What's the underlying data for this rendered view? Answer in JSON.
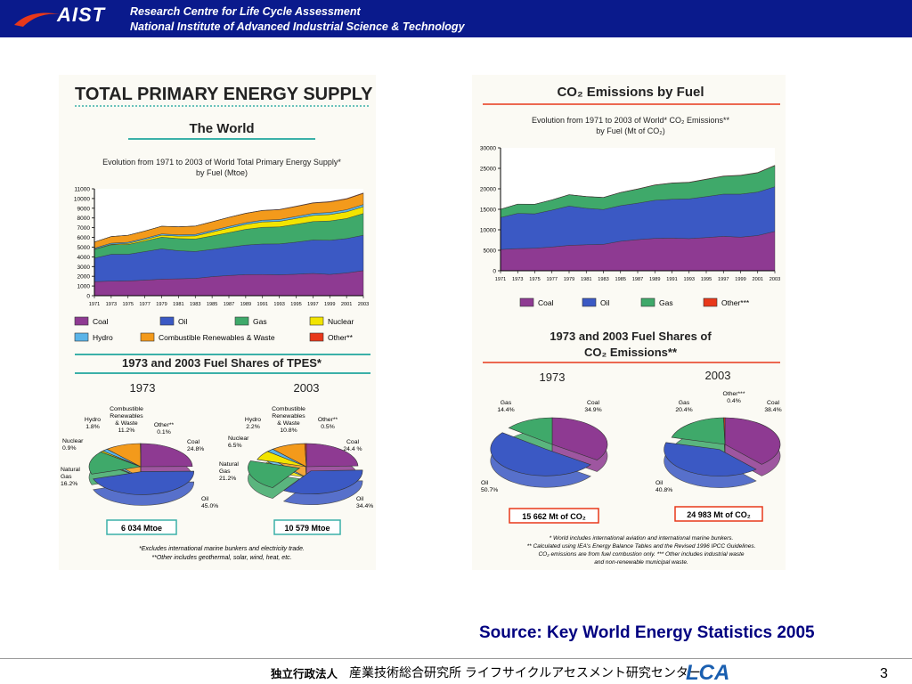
{
  "header": {
    "brand": "AIST",
    "line1": "Research Centre for Life Cycle Assessment",
    "line2": "National Institute of Advanced Industrial Science & Technology"
  },
  "left": {
    "banner": "TOTAL PRIMARY ENERGY SUPPLY",
    "subtitle": "The World",
    "caption1": "Evolution from 1971 to 2003 of World Total Primary Energy Supply*",
    "caption2": "by Fuel (Mtoe)",
    "shares_title": "1973 and 2003 Fuel Shares of TPES*",
    "year1": "1973",
    "year2": "2003",
    "total1": "6 034 Mtoe",
    "total2": "10 579 Mtoe",
    "note1": "*Excludes international marine bunkers and electricity trade.",
    "note2": "**Other includes geothermal, solar, wind, heat, etc.",
    "pie1_labels": [
      {
        "name": "Coal",
        "value": "24.8%"
      },
      {
        "name": "Oil",
        "value": "45.0%"
      },
      {
        "name": "Natural Gas",
        "value": "16.2%"
      },
      {
        "name": "Nuclear",
        "value": "0.9%"
      },
      {
        "name": "Hydro",
        "value": "1.8%"
      },
      {
        "name": "Combustible Renewables & Waste",
        "value": "11.2%"
      },
      {
        "name": "Other**",
        "value": "0.1%"
      }
    ],
    "pie2_labels": [
      {
        "name": "Coal",
        "value": "24.4 %"
      },
      {
        "name": "Oil",
        "value": "34.4%"
      },
      {
        "name": "Natural Gas",
        "value": "21.2%"
      },
      {
        "name": "Nuclear",
        "value": "6.5%"
      },
      {
        "name": "Hydro",
        "value": "2.2%"
      },
      {
        "name": "Combustible Renewables & Waste",
        "value": "10.8%"
      },
      {
        "name": "Other**",
        "value": "0.5%"
      }
    ]
  },
  "right": {
    "banner": "CO₂ Emissions by Fuel",
    "caption1": "Evolution from 1971 to 2003 of World* CO₂ Emissions**",
    "caption2": "by Fuel (Mt of CO₂)",
    "shares_title1": "1973 and 2003 Fuel Shares of",
    "shares_title2": "CO₂ Emissions**",
    "year1": "1973",
    "year2": "2003",
    "total1": "15 662 Mt of CO₂",
    "total2": "24 983 Mt of CO₂",
    "note1": "* World includes international aviation and international marine bunkers.",
    "note2": "** Calculated using IEA's Energy Balance Tables and the Revised 1996 IPCC Guidelines.",
    "note3": "CO₂ emissions are from fuel combustion only. *** Other includes industrial waste",
    "note4": "and non-renewable municipal waste.",
    "pie1_labels": [
      {
        "name": "Coal",
        "value": "34.9%"
      },
      {
        "name": "Oil",
        "value": "50.7%"
      },
      {
        "name": "Gas",
        "value": "14.4%"
      }
    ],
    "pie2_labels": [
      {
        "name": "Coal",
        "value": "38.4%"
      },
      {
        "name": "Oil",
        "value": "40.8%"
      },
      {
        "name": "Gas",
        "value": "20.4%"
      },
      {
        "name": "Other***",
        "value": "0.4%"
      }
    ]
  },
  "chart_data": [
    {
      "type": "area",
      "x_ticks": [
        "1971",
        "1973",
        "1975",
        "1977",
        "1979",
        "1981",
        "1983",
        "1985",
        "1987",
        "1989",
        "1991",
        "1993",
        "1995",
        "1997",
        "1999",
        "2001",
        "2003"
      ],
      "y_ticks": [
        0,
        1000,
        2000,
        3000,
        4000,
        5000,
        6000,
        7000,
        8000,
        9000,
        10000,
        11000
      ],
      "ylim": [
        0,
        11000
      ],
      "x": [
        1971,
        1973,
        1975,
        1977,
        1979,
        1981,
        1983,
        1985,
        1987,
        1989,
        1991,
        1993,
        1995,
        1997,
        1999,
        2001,
        2003
      ],
      "series": [
        {
          "name": "Coal",
          "color": "#8e3a92",
          "values": [
            1450,
            1500,
            1520,
            1600,
            1700,
            1740,
            1780,
            1960,
            2080,
            2170,
            2180,
            2150,
            2210,
            2290,
            2190,
            2340,
            2580
          ]
        },
        {
          "name": "Oil",
          "color": "#3b59c4",
          "values": [
            2420,
            2760,
            2740,
            2940,
            3120,
            2890,
            2770,
            2800,
            2910,
            3040,
            3140,
            3180,
            3300,
            3440,
            3510,
            3540,
            3640
          ]
        },
        {
          "name": "Gas",
          "color": "#3fa96a",
          "values": [
            890,
            980,
            1010,
            1080,
            1200,
            1250,
            1280,
            1390,
            1500,
            1620,
            1720,
            1750,
            1840,
            1900,
            1990,
            2060,
            2240
          ]
        },
        {
          "name": "Nuclear",
          "color": "#f2e400",
          "values": [
            30,
            55,
            110,
            160,
            200,
            250,
            320,
            400,
            470,
            510,
            550,
            570,
            600,
            630,
            660,
            690,
            700
          ]
        },
        {
          "name": "Hydro",
          "color": "#5ab4e8",
          "values": [
            100,
            110,
            115,
            125,
            135,
            140,
            150,
            160,
            165,
            170,
            180,
            190,
            200,
            210,
            215,
            220,
            225
          ]
        },
        {
          "name": "Combustible Renewables & Waste",
          "color": "#f39a1b",
          "values": [
            630,
            680,
            720,
            750,
            790,
            820,
            860,
            890,
            930,
            960,
            990,
            1010,
            1030,
            1060,
            1080,
            1100,
            1140
          ]
        },
        {
          "name": "Other**",
          "color": "#e8381a",
          "values": [
            5,
            6,
            7,
            8,
            10,
            12,
            14,
            16,
            18,
            22,
            26,
            30,
            36,
            40,
            44,
            48,
            52
          ]
        }
      ]
    },
    {
      "type": "area",
      "x_ticks": [
        "1971",
        "1973",
        "1975",
        "1977",
        "1979",
        "1981",
        "1983",
        "1985",
        "1987",
        "1989",
        "1991",
        "1993",
        "1995",
        "1997",
        "1999",
        "2001",
        "2003"
      ],
      "y_ticks": [
        0,
        5000,
        10000,
        15000,
        20000,
        25000,
        30000
      ],
      "ylim": [
        0,
        30000
      ],
      "x": [
        1971,
        1973,
        1975,
        1977,
        1979,
        1981,
        1983,
        1985,
        1987,
        1989,
        1991,
        1993,
        1995,
        1997,
        1999,
        2001,
        2003
      ],
      "series": [
        {
          "name": "Coal",
          "color": "#8e3a92",
          "values": [
            5200,
            5400,
            5500,
            5800,
            6200,
            6350,
            6450,
            7200,
            7600,
            7900,
            7950,
            7850,
            8100,
            8400,
            8200,
            8600,
            9600
          ]
        },
        {
          "name": "Oil",
          "color": "#3b59c4",
          "values": [
            7800,
            8600,
            8400,
            9000,
            9600,
            8900,
            8500,
            8700,
            8900,
            9300,
            9500,
            9700,
            10000,
            10300,
            10500,
            10600,
            10900
          ]
        },
        {
          "name": "Gas",
          "color": "#3fa96a",
          "values": [
            2000,
            2250,
            2320,
            2480,
            2750,
            2850,
            2920,
            3180,
            3430,
            3700,
            3930,
            4000,
            4200,
            4350,
            4550,
            4700,
            5150
          ]
        },
        {
          "name": "Other***",
          "color": "#e8381a",
          "values": [
            20,
            25,
            30,
            35,
            40,
            45,
            50,
            55,
            60,
            65,
            70,
            75,
            80,
            85,
            90,
            95,
            100
          ]
        }
      ]
    },
    {
      "type": "pie",
      "title": "1973",
      "categories": [
        "Coal",
        "Oil",
        "Natural Gas",
        "Nuclear",
        "Hydro",
        "Combustible Renewables & Waste",
        "Other**"
      ],
      "values": [
        24.8,
        45.0,
        16.2,
        0.9,
        1.8,
        11.2,
        0.1
      ]
    },
    {
      "type": "pie",
      "title": "2003",
      "categories": [
        "Coal",
        "Oil",
        "Natural Gas",
        "Nuclear",
        "Hydro",
        "Combustible Renewables & Waste",
        "Other**"
      ],
      "values": [
        24.4,
        34.4,
        21.2,
        6.5,
        2.2,
        10.8,
        0.5
      ]
    },
    {
      "type": "pie",
      "title": "1973",
      "categories": [
        "Coal",
        "Oil",
        "Gas"
      ],
      "values": [
        34.9,
        50.7,
        14.4
      ]
    },
    {
      "type": "pie",
      "title": "2003",
      "categories": [
        "Coal",
        "Oil",
        "Gas",
        "Other***"
      ],
      "values": [
        38.4,
        40.8,
        20.4,
        0.4
      ]
    }
  ],
  "source": "Source: Key World Energy Statistics 2005",
  "footer": {
    "org_type": "独立行政法人",
    "org_name": "産業技術総合研究所 ライフサイクルアセスメント研究センター",
    "logo_text": "LCA",
    "page": "3"
  }
}
